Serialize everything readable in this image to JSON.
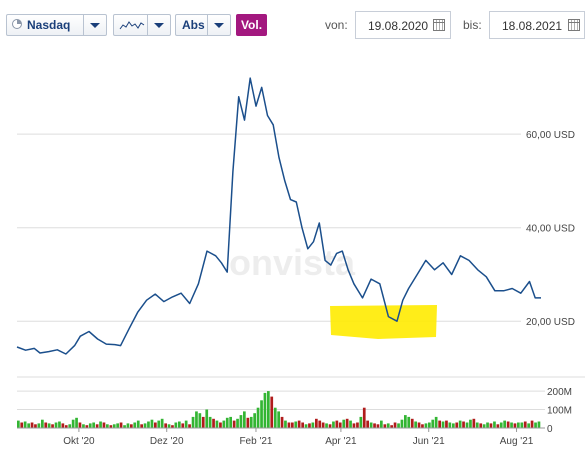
{
  "toolbar": {
    "exchange": "Nasdaq",
    "chart_type_icon": "line-chart-icon",
    "scale": "Abs",
    "volume_label": "Vol.",
    "from_label": "von:",
    "from_date": "19.08.2020",
    "to_label": "bis:",
    "to_date": "18.08.2021"
  },
  "watermark": "onvista",
  "colors": {
    "line": "#1b4f8c",
    "grid": "#dddddd",
    "volume_up": "#33b533",
    "volume_down": "#b01c1c",
    "highlight": "#ffeb00",
    "volume_button": "#a3187f"
  },
  "chart_data": {
    "type": "line",
    "x": [
      "2020-08-19",
      "2020-08-25",
      "2020-08-31",
      "2020-09-04",
      "2020-09-10",
      "2020-09-16",
      "2020-09-22",
      "2020-09-28",
      "2020-10-02",
      "2020-10-08",
      "2020-10-14",
      "2020-10-20",
      "2020-10-26",
      "2020-10-30",
      "2020-11-05",
      "2020-11-11",
      "2020-11-17",
      "2020-11-23",
      "2020-11-29",
      "2020-12-05",
      "2020-12-11",
      "2020-12-17",
      "2020-12-23",
      "2020-12-29",
      "2021-01-04",
      "2021-01-08",
      "2021-01-12",
      "2021-01-16",
      "2021-01-20",
      "2021-01-24",
      "2021-01-28",
      "2021-02-01",
      "2021-02-05",
      "2021-02-09",
      "2021-02-13",
      "2021-02-17",
      "2021-02-21",
      "2021-02-25",
      "2021-03-01",
      "2021-03-05",
      "2021-03-09",
      "2021-03-13",
      "2021-03-17",
      "2021-03-21",
      "2021-03-25",
      "2021-03-29",
      "2021-04-02",
      "2021-04-06",
      "2021-04-10",
      "2021-04-16",
      "2021-04-22",
      "2021-04-28",
      "2021-05-04",
      "2021-05-10",
      "2021-05-14",
      "2021-05-18",
      "2021-05-24",
      "2021-05-30",
      "2021-06-05",
      "2021-06-11",
      "2021-06-17",
      "2021-06-23",
      "2021-06-29",
      "2021-07-05",
      "2021-07-11",
      "2021-07-17",
      "2021-07-23",
      "2021-07-29",
      "2021-08-04",
      "2021-08-10",
      "2021-08-14",
      "2021-08-18"
    ],
    "values": [
      14.5,
      13.8,
      14.2,
      13.2,
      13.5,
      13.9,
      13.0,
      14.8,
      16.8,
      17.8,
      16.2,
      15.1,
      15.0,
      14.8,
      18.5,
      22.0,
      24.5,
      25.8,
      24.2,
      25.2,
      26.0,
      23.8,
      28.0,
      35.0,
      34.0,
      32.5,
      30.5,
      52.0,
      68.0,
      63.0,
      72.0,
      66.0,
      70.0,
      64.0,
      62.0,
      55.0,
      50.0,
      46.0,
      45.5,
      40.0,
      35.5,
      37.0,
      41.0,
      33.0,
      32.0,
      34.5,
      35.0,
      31.0,
      28.0,
      25.0,
      29.0,
      28.0,
      21.0,
      20.0,
      24.5,
      27.0,
      30.0,
      33.0,
      31.0,
      32.5,
      30.0,
      34.0,
      33.0,
      31.0,
      29.5,
      26.5,
      26.5,
      27.0,
      26.0,
      28.5,
      25.0,
      25.0
    ],
    "y_ticks": [
      20,
      40,
      60
    ],
    "y_tick_labels": [
      "20,00 USD",
      "40,00 USD",
      "60,00 USD"
    ],
    "ylim": [
      10,
      78
    ],
    "x_tick_labels": [
      "Okt '20",
      "Dez '20",
      "Feb '21",
      "Apr '21",
      "Jun '21",
      "Aug '21"
    ],
    "x_tick_dates": [
      "2020-10-01",
      "2020-12-01",
      "2021-02-01",
      "2021-04-01",
      "2021-06-01",
      "2021-08-01"
    ],
    "grid": true,
    "volume": {
      "ticks_labels": [
        "0",
        "100M",
        "200M"
      ],
      "ticks": [
        0,
        100,
        200
      ],
      "ylim": [
        0,
        260
      ],
      "values_m": [
        40,
        30,
        35,
        25,
        30,
        20,
        25,
        45,
        30,
        25,
        20,
        30,
        35,
        25,
        15,
        20,
        45,
        55,
        30,
        20,
        15,
        25,
        30,
        20,
        35,
        30,
        20,
        15,
        20,
        25,
        30,
        15,
        25,
        20,
        30,
        40,
        20,
        25,
        35,
        45,
        30,
        40,
        50,
        25,
        20,
        15,
        30,
        35,
        25,
        40,
        20,
        60,
        90,
        80,
        60,
        100,
        60,
        50,
        40,
        30,
        40,
        55,
        60,
        40,
        50,
        70,
        90,
        55,
        60,
        80,
        110,
        150,
        190,
        200,
        170,
        110,
        90,
        60,
        40,
        30,
        30,
        35,
        40,
        30,
        20,
        25,
        30,
        50,
        40,
        30,
        25,
        20,
        35,
        40,
        30,
        45,
        50,
        40,
        25,
        30,
        60,
        110,
        40,
        30,
        25,
        20,
        40,
        20,
        25,
        15,
        30,
        25,
        45,
        70,
        60,
        50,
        35,
        30,
        20,
        25,
        30,
        45,
        60,
        40,
        35,
        40,
        30,
        25,
        30,
        40,
        35,
        30,
        45,
        50,
        30,
        25,
        20,
        30,
        25,
        35,
        20,
        30,
        40,
        35,
        30,
        25,
        30,
        30,
        35,
        25,
        40,
        30,
        35
      ],
      "up": [
        1,
        0,
        1,
        1,
        0,
        0,
        1,
        1,
        0,
        1,
        0,
        1,
        1,
        0,
        0,
        1,
        1,
        1,
        0,
        1,
        0,
        1,
        1,
        0,
        1,
        0,
        1,
        0,
        1,
        1,
        0,
        1,
        1,
        0,
        1,
        1,
        0,
        1,
        1,
        1,
        0,
        1,
        1,
        0,
        1,
        0,
        1,
        1,
        0,
        1,
        0,
        1,
        1,
        1,
        0,
        1,
        1,
        0,
        1,
        0,
        1,
        1,
        1,
        0,
        1,
        1,
        1,
        0,
        1,
        1,
        1,
        1,
        1,
        1,
        0,
        1,
        1,
        0,
        1,
        0,
        0,
        1,
        0,
        0,
        1,
        0,
        1,
        0,
        0,
        0,
        1,
        0,
        1,
        0,
        0,
        1,
        0,
        1,
        0,
        0,
        1,
        0,
        0,
        1,
        0,
        0,
        1,
        0,
        1,
        0,
        0,
        1,
        1,
        1,
        1,
        0,
        1,
        0,
        0,
        1,
        1,
        1,
        1,
        0,
        1,
        0,
        1,
        1,
        0,
        1,
        0,
        1,
        1,
        0,
        1,
        0,
        1,
        1,
        0,
        1,
        0,
        1,
        1,
        0,
        1,
        0,
        1,
        1,
        0,
        1,
        0,
        1,
        1
      ]
    }
  }
}
